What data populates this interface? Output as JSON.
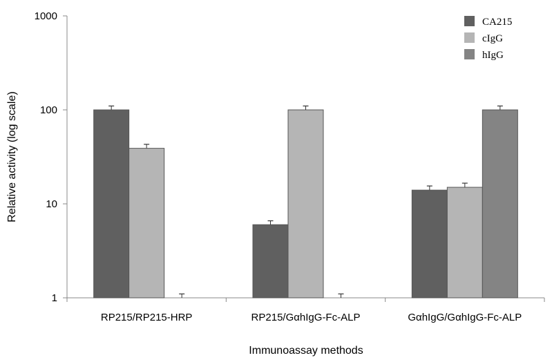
{
  "chart_data": {
    "type": "bar",
    "categories": [
      "RP215/RP215-HRP",
      "RP215/GαhIgG-Fc-ALP",
      "GαhIgG/GαhIgG-Fc-ALP"
    ],
    "series": [
      {
        "name": "CA215",
        "values": [
          100,
          6,
          14
        ],
        "errors": [
          10,
          0.6,
          1.5
        ],
        "color": "#606060"
      },
      {
        "name": "cIgG",
        "values": [
          39,
          100,
          15
        ],
        "errors": [
          4,
          10,
          1.6
        ],
        "color": "#b5b5b5"
      },
      {
        "name": "hIgG",
        "values": [
          1,
          1,
          100
        ],
        "errors": [
          0.1,
          0.1,
          10
        ],
        "color": "#848484"
      }
    ],
    "xlabel": "Immunoassay methods",
    "ylabel": "Relative activity (log scale)",
    "yscale": "log",
    "ylim": [
      1,
      1000
    ],
    "yticks": [
      1,
      10,
      100,
      1000
    ],
    "ytick_labels": [
      "1",
      "10",
      "100",
      "1000"
    ],
    "grid": false,
    "legend_position": "top-right"
  }
}
